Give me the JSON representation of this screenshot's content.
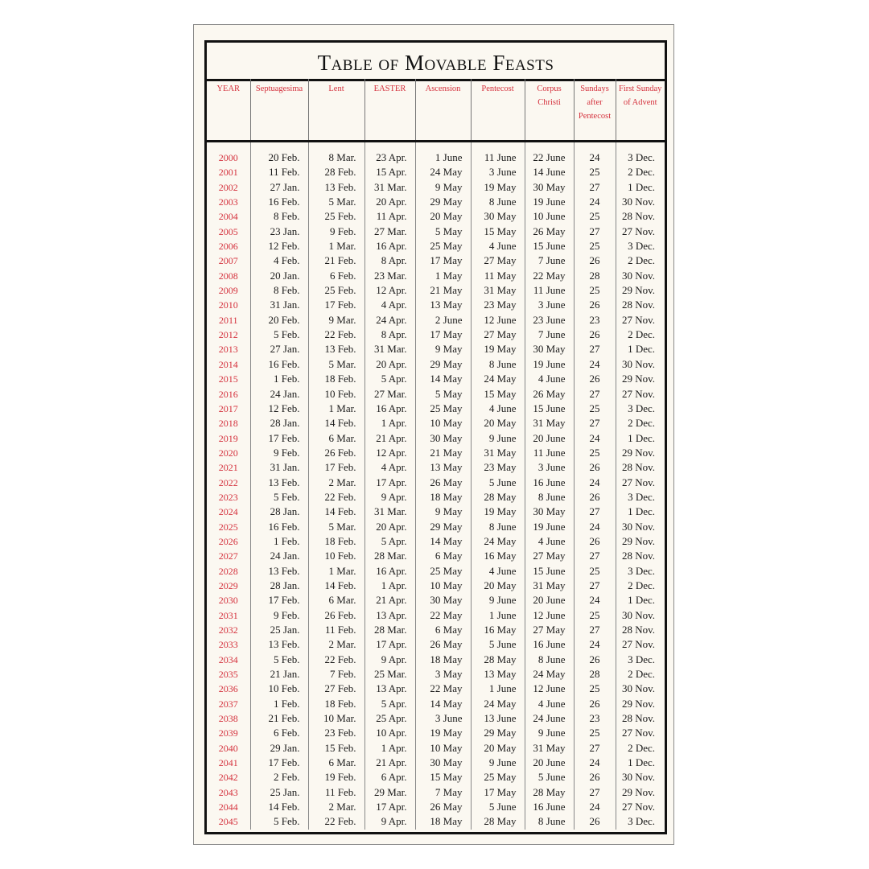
{
  "title": "Table of Movable Feasts",
  "accent_color": "#d4303c",
  "columns": [
    "YEAR",
    "Septuagesima",
    "Lent",
    "EASTER",
    "Ascension",
    "Pentecost",
    "Corpus Christi",
    "Sundays after Pentecost",
    "First Sunday of Advent"
  ],
  "rows": [
    [
      "2000",
      "20 Feb.",
      "8 Mar.",
      "23 Apr.",
      "1 June",
      "11 June",
      "22 June",
      "24",
      "3 Dec."
    ],
    [
      "2001",
      "11 Feb.",
      "28 Feb.",
      "15 Apr.",
      "24 May",
      "3 June",
      "14 June",
      "25",
      "2 Dec."
    ],
    [
      "2002",
      "27 Jan.",
      "13 Feb.",
      "31 Mar.",
      "9 May",
      "19 May",
      "30 May",
      "27",
      "1 Dec."
    ],
    [
      "2003",
      "16 Feb.",
      "5 Mar.",
      "20 Apr.",
      "29 May",
      "8 June",
      "19 June",
      "24",
      "30 Nov."
    ],
    [
      "2004",
      "8 Feb.",
      "25 Feb.",
      "11 Apr.",
      "20 May",
      "30 May",
      "10 June",
      "25",
      "28 Nov."
    ],
    [
      "2005",
      "23 Jan.",
      "9 Feb.",
      "27 Mar.",
      "5 May",
      "15 May",
      "26 May",
      "27",
      "27 Nov."
    ],
    [
      "2006",
      "12 Feb.",
      "1 Mar.",
      "16 Apr.",
      "25 May",
      "4 June",
      "15 June",
      "25",
      "3 Dec."
    ],
    [
      "2007",
      "4 Feb.",
      "21 Feb.",
      "8 Apr.",
      "17 May",
      "27 May",
      "7 June",
      "26",
      "2 Dec."
    ],
    [
      "2008",
      "20 Jan.",
      "6 Feb.",
      "23 Mar.",
      "1 May",
      "11 May",
      "22 May",
      "28",
      "30 Nov."
    ],
    [
      "2009",
      "8 Feb.",
      "25 Feb.",
      "12 Apr.",
      "21 May",
      "31 May",
      "11 June",
      "25",
      "29 Nov."
    ],
    [
      "2010",
      "31 Jan.",
      "17 Feb.",
      "4 Apr.",
      "13 May",
      "23 May",
      "3 June",
      "26",
      "28 Nov."
    ],
    [
      "2011",
      "20 Feb.",
      "9 Mar.",
      "24 Apr.",
      "2 June",
      "12 June",
      "23 June",
      "23",
      "27 Nov."
    ],
    [
      "2012",
      "5 Feb.",
      "22 Feb.",
      "8 Apr.",
      "17 May",
      "27 May",
      "7 June",
      "26",
      "2 Dec."
    ],
    [
      "2013",
      "27 Jan.",
      "13 Feb.",
      "31 Mar.",
      "9 May",
      "19 May",
      "30 May",
      "27",
      "1 Dec."
    ],
    [
      "2014",
      "16 Feb.",
      "5 Mar.",
      "20 Apr.",
      "29 May",
      "8 June",
      "19 June",
      "24",
      "30 Nov."
    ],
    [
      "2015",
      "1 Feb.",
      "18 Feb.",
      "5 Apr.",
      "14 May",
      "24 May",
      "4 June",
      "26",
      "29 Nov."
    ],
    [
      "2016",
      "24 Jan.",
      "10 Feb.",
      "27 Mar.",
      "5 May",
      "15 May",
      "26 May",
      "27",
      "27 Nov."
    ],
    [
      "2017",
      "12 Feb.",
      "1 Mar.",
      "16 Apr.",
      "25 May",
      "4 June",
      "15 June",
      "25",
      "3 Dec."
    ],
    [
      "2018",
      "28 Jan.",
      "14 Feb.",
      "1 Apr.",
      "10 May",
      "20 May",
      "31 May",
      "27",
      "2 Dec."
    ],
    [
      "2019",
      "17 Feb.",
      "6 Mar.",
      "21 Apr.",
      "30 May",
      "9 June",
      "20 June",
      "24",
      "1 Dec."
    ],
    [
      "2020",
      "9 Feb.",
      "26 Feb.",
      "12 Apr.",
      "21 May",
      "31 May",
      "11 June",
      "25",
      "29 Nov."
    ],
    [
      "2021",
      "31 Jan.",
      "17 Feb.",
      "4 Apr.",
      "13 May",
      "23 May",
      "3 June",
      "26",
      "28 Nov."
    ],
    [
      "2022",
      "13 Feb.",
      "2 Mar.",
      "17 Apr.",
      "26 May",
      "5 June",
      "16 June",
      "24",
      "27 Nov."
    ],
    [
      "2023",
      "5 Feb.",
      "22 Feb.",
      "9 Apr.",
      "18 May",
      "28 May",
      "8 June",
      "26",
      "3 Dec."
    ],
    [
      "2024",
      "28 Jan.",
      "14 Feb.",
      "31 Mar.",
      "9 May",
      "19 May",
      "30 May",
      "27",
      "1 Dec."
    ],
    [
      "2025",
      "16 Feb.",
      "5 Mar.",
      "20 Apr.",
      "29 May",
      "8 June",
      "19 June",
      "24",
      "30 Nov."
    ],
    [
      "2026",
      "1 Feb.",
      "18 Feb.",
      "5 Apr.",
      "14 May",
      "24 May",
      "4 June",
      "26",
      "29 Nov."
    ],
    [
      "2027",
      "24 Jan.",
      "10 Feb.",
      "28 Mar.",
      "6 May",
      "16 May",
      "27 May",
      "27",
      "28 Nov."
    ],
    [
      "2028",
      "13 Feb.",
      "1 Mar.",
      "16 Apr.",
      "25 May",
      "4 June",
      "15 June",
      "25",
      "3 Dec."
    ],
    [
      "2029",
      "28 Jan.",
      "14 Feb.",
      "1 Apr.",
      "10 May",
      "20 May",
      "31 May",
      "27",
      "2 Dec."
    ],
    [
      "2030",
      "17 Feb.",
      "6 Mar.",
      "21 Apr.",
      "30 May",
      "9 June",
      "20 June",
      "24",
      "1 Dec."
    ],
    [
      "2031",
      "9 Feb.",
      "26 Feb.",
      "13 Apr.",
      "22 May",
      "1 June",
      "12 June",
      "25",
      "30 Nov."
    ],
    [
      "2032",
      "25 Jan.",
      "11 Feb.",
      "28 Mar.",
      "6 May",
      "16 May",
      "27 May",
      "27",
      "28 Nov."
    ],
    [
      "2033",
      "13 Feb.",
      "2 Mar.",
      "17 Apr.",
      "26 May",
      "5 June",
      "16 June",
      "24",
      "27 Nov."
    ],
    [
      "2034",
      "5 Feb.",
      "22 Feb.",
      "9 Apr.",
      "18 May",
      "28 May",
      "8 June",
      "26",
      "3 Dec."
    ],
    [
      "2035",
      "21 Jan.",
      "7 Feb.",
      "25 Mar.",
      "3 May",
      "13 May",
      "24 May",
      "28",
      "2 Dec."
    ],
    [
      "2036",
      "10 Feb.",
      "27 Feb.",
      "13 Apr.",
      "22 May",
      "1 June",
      "12 June",
      "25",
      "30 Nov."
    ],
    [
      "2037",
      "1 Feb.",
      "18 Feb.",
      "5 Apr.",
      "14 May",
      "24 May",
      "4 June",
      "26",
      "29 Nov."
    ],
    [
      "2038",
      "21 Feb.",
      "10 Mar.",
      "25 Apr.",
      "3 June",
      "13 June",
      "24 June",
      "23",
      "28 Nov."
    ],
    [
      "2039",
      "6 Feb.",
      "23 Feb.",
      "10 Apr.",
      "19 May",
      "29 May",
      "9 June",
      "25",
      "27 Nov."
    ],
    [
      "2040",
      "29 Jan.",
      "15 Feb.",
      "1 Apr.",
      "10 May",
      "20 May",
      "31 May",
      "27",
      "2 Dec."
    ],
    [
      "2041",
      "17 Feb.",
      "6 Mar.",
      "21 Apr.",
      "30 May",
      "9 June",
      "20 June",
      "24",
      "1 Dec."
    ],
    [
      "2042",
      "2 Feb.",
      "19 Feb.",
      "6 Apr.",
      "15 May",
      "25 May",
      "5 June",
      "26",
      "30 Nov."
    ],
    [
      "2043",
      "25 Jan.",
      "11 Feb.",
      "29 Mar.",
      "7 May",
      "17 May",
      "28 May",
      "27",
      "29 Nov."
    ],
    [
      "2044",
      "14 Feb.",
      "2 Mar.",
      "17 Apr.",
      "26 May",
      "5 June",
      "16 June",
      "24",
      "27 Nov."
    ],
    [
      "2045",
      "5 Feb.",
      "22 Feb.",
      "9 Apr.",
      "18 May",
      "28 May",
      "8 June",
      "26",
      "3 Dec."
    ]
  ]
}
